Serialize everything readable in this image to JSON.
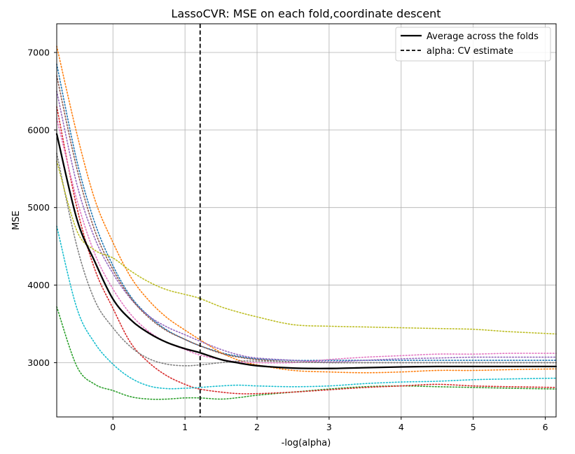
{
  "chart_data": {
    "type": "line",
    "title": "LassoCVR: MSE on each fold,coordinate descent",
    "xlabel": "-log(alpha)",
    "ylabel": "MSE",
    "xlim": [
      -0.78,
      6.15
    ],
    "ylim": [
      2300,
      7370
    ],
    "xticks": [
      0,
      1,
      2,
      3,
      4,
      5,
      6
    ],
    "yticks": [
      3000,
      4000,
      5000,
      6000,
      7000
    ],
    "grid": true,
    "legend_position": "top-right",
    "alpha_cv_estimate": 1.21,
    "x": [
      -0.78,
      -0.5,
      -0.25,
      0.0,
      0.25,
      0.5,
      0.75,
      1.0,
      1.2,
      1.5,
      1.75,
      2.0,
      2.5,
      3.0,
      3.5,
      4.0,
      4.5,
      5.0,
      5.5,
      6.15
    ],
    "series": [
      {
        "color": "#1f77b4",
        "style": "dotted",
        "values": [
          6850,
          5600,
          4800,
          4250,
          3850,
          3600,
          3420,
          3300,
          3220,
          3130,
          3080,
          3050,
          3030,
          3030,
          3030,
          3030,
          3030,
          3030,
          3030,
          3030
        ]
      },
      {
        "color": "#ff7f0e",
        "style": "dotted",
        "values": [
          7080,
          5950,
          5100,
          4550,
          4100,
          3800,
          3580,
          3420,
          3300,
          3130,
          3030,
          2970,
          2900,
          2880,
          2870,
          2880,
          2900,
          2900,
          2910,
          2920
        ]
      },
      {
        "color": "#2ca02c",
        "style": "dotted",
        "values": [
          3720,
          2950,
          2720,
          2640,
          2560,
          2530,
          2530,
          2545,
          2545,
          2530,
          2550,
          2580,
          2620,
          2660,
          2690,
          2700,
          2690,
          2680,
          2670,
          2660
        ]
      },
      {
        "color": "#d62728",
        "style": "dotted",
        "values": [
          6300,
          5000,
          4200,
          3700,
          3250,
          3000,
          2830,
          2720,
          2660,
          2620,
          2600,
          2600,
          2620,
          2650,
          2680,
          2700,
          2720,
          2700,
          2690,
          2680
        ]
      },
      {
        "color": "#9467bd",
        "style": "dotted",
        "values": [
          6500,
          5300,
          4600,
          4150,
          3820,
          3600,
          3460,
          3360,
          3280,
          3170,
          3100,
          3060,
          3030,
          3010,
          3030,
          3050,
          3060,
          3070,
          3070,
          3070
        ]
      },
      {
        "color": "#8c564b",
        "style": "dotted",
        "values": [
          6700,
          5500,
          4700,
          4200,
          3830,
          3580,
          3410,
          3300,
          3220,
          3120,
          3070,
          3040,
          3010,
          3000,
          3000,
          3000,
          3000,
          3000,
          3000,
          3000
        ]
      },
      {
        "color": "#e377c2",
        "style": "dotted",
        "values": [
          6150,
          5100,
          4400,
          3950,
          3620,
          3400,
          3260,
          3170,
          3100,
          3040,
          3010,
          3000,
          3000,
          3040,
          3070,
          3090,
          3110,
          3110,
          3120,
          3120
        ]
      },
      {
        "color": "#7f7f7f",
        "style": "dotted",
        "values": [
          5700,
          4500,
          3800,
          3450,
          3200,
          3050,
          2980,
          2960,
          2970,
          3000,
          3020,
          3020,
          3010,
          3000,
          3000,
          3000,
          3000,
          3000,
          3000,
          3000
        ]
      },
      {
        "color": "#bcbd22",
        "style": "dotted",
        "values": [
          5600,
          4700,
          4450,
          4350,
          4180,
          4040,
          3940,
          3880,
          3830,
          3720,
          3650,
          3590,
          3490,
          3470,
          3460,
          3450,
          3440,
          3430,
          3400,
          3370
        ]
      },
      {
        "color": "#17becf",
        "style": "dotted",
        "values": [
          4760,
          3700,
          3250,
          2980,
          2800,
          2700,
          2665,
          2670,
          2680,
          2700,
          2710,
          2700,
          2690,
          2700,
          2730,
          2750,
          2760,
          2780,
          2790,
          2800
        ]
      },
      {
        "name": "Average across the folds",
        "color": "#000000",
        "style": "solid",
        "values": [
          5950,
          4850,
          4300,
          3820,
          3550,
          3380,
          3260,
          3180,
          3130,
          3040,
          2995,
          2960,
          2930,
          2925,
          2935,
          2945,
          2950,
          2950,
          2950,
          2950
        ]
      }
    ],
    "legend": [
      {
        "label": "Average across the folds",
        "style": "solid"
      },
      {
        "label": "alpha: CV estimate",
        "style": "dashed"
      }
    ]
  }
}
